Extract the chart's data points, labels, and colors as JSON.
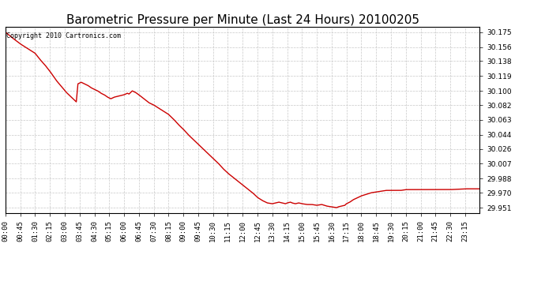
{
  "title": "Barometric Pressure per Minute (Last 24 Hours) 20100205",
  "copyright_text": "Copyright 2010 Cartronics.com",
  "line_color": "#cc0000",
  "background_color": "#ffffff",
  "plot_bg_color": "#ffffff",
  "grid_color": "#c8c8c8",
  "ylim": [
    29.944,
    30.182
  ],
  "yticks": [
    30.175,
    30.156,
    30.138,
    30.119,
    30.1,
    30.082,
    30.063,
    30.044,
    30.026,
    30.007,
    29.988,
    29.97,
    29.951
  ],
  "xtick_labels": [
    "00:00",
    "00:45",
    "01:30",
    "02:15",
    "03:00",
    "03:45",
    "04:30",
    "05:15",
    "06:00",
    "06:45",
    "07:30",
    "08:15",
    "09:00",
    "09:45",
    "10:30",
    "11:15",
    "12:00",
    "12:45",
    "13:30",
    "14:15",
    "15:00",
    "15:45",
    "16:30",
    "17:15",
    "18:00",
    "18:45",
    "19:30",
    "20:15",
    "21:00",
    "21:45",
    "22:30",
    "23:15"
  ],
  "title_fontsize": 11,
  "tick_fontsize": 6.5,
  "copyright_fontsize": 6,
  "line_width": 1.0,
  "waypoints": [
    [
      0,
      30.175
    ],
    [
      20,
      30.168
    ],
    [
      45,
      30.16
    ],
    [
      75,
      30.152
    ],
    [
      90,
      30.148
    ],
    [
      105,
      30.14
    ],
    [
      120,
      30.133
    ],
    [
      135,
      30.125
    ],
    [
      145,
      30.119
    ],
    [
      155,
      30.113
    ],
    [
      165,
      30.108
    ],
    [
      175,
      30.103
    ],
    [
      185,
      30.098
    ],
    [
      195,
      30.094
    ],
    [
      205,
      30.09
    ],
    [
      215,
      30.086
    ],
    [
      220,
      30.109
    ],
    [
      230,
      30.111
    ],
    [
      240,
      30.109
    ],
    [
      250,
      30.107
    ],
    [
      260,
      30.104
    ],
    [
      270,
      30.102
    ],
    [
      280,
      30.1
    ],
    [
      290,
      30.097
    ],
    [
      300,
      30.095
    ],
    [
      310,
      30.092
    ],
    [
      320,
      30.09
    ],
    [
      330,
      30.092
    ],
    [
      340,
      30.093
    ],
    [
      350,
      30.094
    ],
    [
      360,
      30.095
    ],
    [
      370,
      30.097
    ],
    [
      375,
      30.096
    ],
    [
      385,
      30.1
    ],
    [
      395,
      30.098
    ],
    [
      405,
      30.095
    ],
    [
      420,
      30.09
    ],
    [
      435,
      30.085
    ],
    [
      450,
      30.082
    ],
    [
      465,
      30.078
    ],
    [
      480,
      30.074
    ],
    [
      495,
      30.07
    ],
    [
      510,
      30.064
    ],
    [
      525,
      30.057
    ],
    [
      540,
      30.051
    ],
    [
      555,
      30.044
    ],
    [
      570,
      30.038
    ],
    [
      585,
      30.032
    ],
    [
      600,
      30.026
    ],
    [
      615,
      30.02
    ],
    [
      630,
      30.014
    ],
    [
      645,
      30.008
    ],
    [
      660,
      30.001
    ],
    [
      675,
      29.995
    ],
    [
      690,
      29.99
    ],
    [
      705,
      29.985
    ],
    [
      720,
      29.98
    ],
    [
      735,
      29.975
    ],
    [
      750,
      29.97
    ],
    [
      765,
      29.964
    ],
    [
      780,
      29.96
    ],
    [
      795,
      29.957
    ],
    [
      810,
      29.956
    ],
    [
      820,
      29.957
    ],
    [
      830,
      29.958
    ],
    [
      840,
      29.957
    ],
    [
      850,
      29.956
    ],
    [
      855,
      29.957
    ],
    [
      865,
      29.958
    ],
    [
      870,
      29.957
    ],
    [
      880,
      29.956
    ],
    [
      890,
      29.957
    ],
    [
      900,
      29.956
    ],
    [
      915,
      29.955
    ],
    [
      930,
      29.955
    ],
    [
      945,
      29.954
    ],
    [
      960,
      29.955
    ],
    [
      975,
      29.953
    ],
    [
      990,
      29.952
    ],
    [
      1005,
      29.951
    ],
    [
      1010,
      29.952
    ],
    [
      1020,
      29.953
    ],
    [
      1030,
      29.954
    ],
    [
      1035,
      29.956
    ],
    [
      1045,
      29.958
    ],
    [
      1055,
      29.961
    ],
    [
      1065,
      29.963
    ],
    [
      1080,
      29.966
    ],
    [
      1095,
      29.968
    ],
    [
      1110,
      29.97
    ],
    [
      1125,
      29.971
    ],
    [
      1140,
      29.972
    ],
    [
      1155,
      29.973
    ],
    [
      1170,
      29.973
    ],
    [
      1185,
      29.973
    ],
    [
      1200,
      29.973
    ],
    [
      1215,
      29.974
    ],
    [
      1230,
      29.974
    ],
    [
      1260,
      29.974
    ],
    [
      1300,
      29.974
    ],
    [
      1350,
      29.974
    ],
    [
      1395,
      29.975
    ],
    [
      1439,
      29.975
    ]
  ]
}
